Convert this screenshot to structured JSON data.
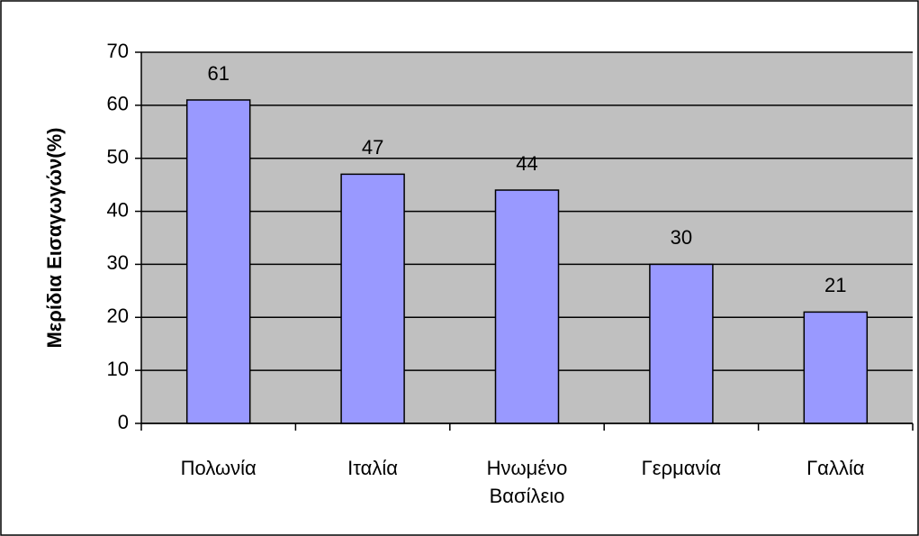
{
  "chart_data": {
    "type": "bar",
    "y_label": "Μερίδια Εισαγωγών(%)",
    "categories": [
      "Πολωνία",
      "Ιταλία",
      "Ηνωμένο Βασίλειο",
      "Γερμανία",
      "Γαλλία"
    ],
    "values": [
      61,
      47,
      44,
      30,
      21
    ],
    "color": "#9999ff",
    "ylim": [
      0,
      70
    ],
    "yticks": [
      0,
      10,
      20,
      30,
      40,
      50,
      60,
      70
    ],
    "grid": true
  }
}
